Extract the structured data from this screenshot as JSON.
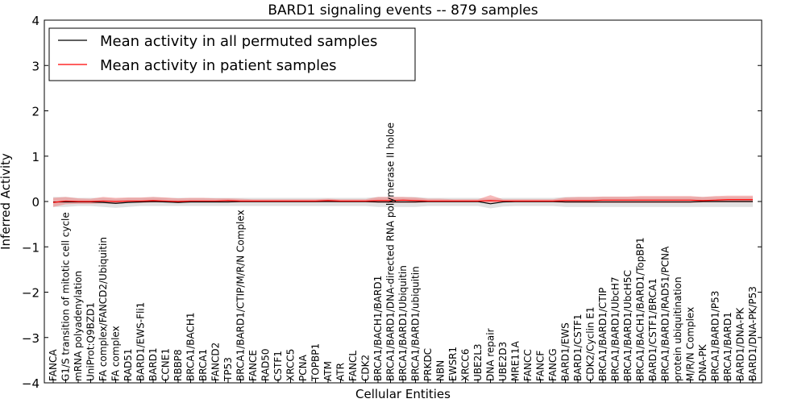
{
  "chart_data": {
    "type": "line",
    "title": "BARD1 signaling events -- 879 samples",
    "xlabel": "Cellular Entities",
    "ylabel": "Inferred Activity",
    "ylim": [
      -4,
      4
    ],
    "yticks": [
      -4,
      -3,
      -2,
      -1,
      0,
      1,
      2,
      3,
      4
    ],
    "legend_position": "top-left",
    "colors": {
      "permuted": "#000000",
      "patient": "#ff0000",
      "permuted_band": "#c8c8c8",
      "patient_band": "#f08080"
    },
    "categories": [
      "FANCA",
      "G1/S transition of mitotic cell cycle",
      "mRNA polyadenylation",
      "UniProt:Q9BZD1",
      "FA complex/FANCD2/Ubiquitin",
      "FA complex",
      "RAD51",
      "BARD1/EWS-Fli1",
      "BARD1",
      "CCNE1",
      "RBBP8",
      "BRCA1/BACH1",
      "BRCA1",
      "FANCD2",
      "TP53",
      "BRCA1/BARD1/CTIP/M/R/N Complex",
      "FANCE",
      "RAD50",
      "CSTF1",
      "XRCC5",
      "PCNA",
      "TOPBP1",
      "ATM",
      "ATR",
      "FANCL",
      "CDK2",
      "BRCA1/BACH1/BARD1",
      "BRCA1/BARD1/DNA-directed RNA polymerase II holoe",
      "BRCA1/BARD1/Ubiquitin",
      "BRCA1/BARD1/ubiquitin",
      "PRKDC",
      "NBN",
      "EWSR1",
      "XRCC6",
      "UBE2L3",
      "DNA repair",
      "UBE2D3",
      "MRE11A",
      "FANCC",
      "FANCF",
      "FANCG",
      "BARD1/EWS",
      "BARD1/CSTF1",
      "CDK2/Cyclin E1",
      "BRCA1/BARD1/CTIP",
      "BRCA1/BARD1/UbcH7",
      "BRCA1/BARD1/UbcH5C",
      "BRCA1/BACH1/BARD1/TopBP1",
      "BARD1/CSTF1/BRCA1",
      "BRCA1/BARD1/RAD51/PCNA",
      "protein ubiquitination",
      "M/R/N Complex",
      "DNA-PK",
      "BRCA1/BARD1/P53",
      "BRCA1/BARD1",
      "BARD1/DNA-PK",
      "BARD1/DNA-PK/P53"
    ],
    "series": [
      {
        "name": "Mean activity in all permuted samples",
        "color": "#000000",
        "values": [
          -0.01,
          -0.01,
          -0.01,
          -0.01,
          -0.02,
          -0.04,
          -0.02,
          -0.01,
          0.0,
          -0.01,
          -0.02,
          -0.01,
          -0.01,
          -0.01,
          -0.01,
          0.0,
          0.0,
          0.0,
          0.0,
          0.0,
          0.0,
          0.0,
          0.0,
          0.0,
          0.0,
          0.0,
          -0.01,
          -0.01,
          -0.01,
          -0.01,
          0.0,
          0.0,
          0.0,
          0.0,
          0.0,
          -0.05,
          -0.01,
          0.0,
          0.0,
          0.0,
          0.0,
          -0.01,
          -0.01,
          -0.01,
          -0.01,
          -0.01,
          -0.01,
          -0.01,
          -0.01,
          -0.01,
          -0.01,
          -0.01,
          0.0,
          0.0,
          0.0,
          0.0,
          0.0
        ],
        "band_lower": [
          -0.12,
          -0.12,
          -0.1,
          -0.1,
          -0.12,
          -0.14,
          -0.12,
          -0.1,
          -0.1,
          -0.1,
          -0.1,
          -0.1,
          -0.1,
          -0.1,
          -0.1,
          -0.1,
          -0.1,
          -0.1,
          -0.1,
          -0.1,
          -0.1,
          -0.1,
          -0.1,
          -0.1,
          -0.1,
          -0.1,
          -0.12,
          -0.12,
          -0.12,
          -0.12,
          -0.1,
          -0.1,
          -0.1,
          -0.1,
          -0.1,
          -0.15,
          -0.11,
          -0.1,
          -0.1,
          -0.1,
          -0.1,
          -0.12,
          -0.12,
          -0.12,
          -0.12,
          -0.12,
          -0.12,
          -0.12,
          -0.12,
          -0.12,
          -0.12,
          -0.12,
          -0.12,
          -0.12,
          -0.12,
          -0.12,
          -0.12
        ],
        "band_upper": [
          0.1,
          0.1,
          0.08,
          0.08,
          0.08,
          0.06,
          0.08,
          0.08,
          0.1,
          0.08,
          0.08,
          0.08,
          0.08,
          0.08,
          0.08,
          0.08,
          0.08,
          0.08,
          0.08,
          0.08,
          0.08,
          0.08,
          0.08,
          0.08,
          0.08,
          0.08,
          0.1,
          0.1,
          0.1,
          0.1,
          0.08,
          0.08,
          0.08,
          0.08,
          0.08,
          0.06,
          0.08,
          0.08,
          0.08,
          0.08,
          0.08,
          0.1,
          0.1,
          0.1,
          0.1,
          0.1,
          0.1,
          0.1,
          0.1,
          0.1,
          0.1,
          0.1,
          0.1,
          0.1,
          0.1,
          0.1,
          0.1
        ]
      },
      {
        "name": "Mean activity in patient samples",
        "color": "#ff0000",
        "values": [
          -0.02,
          0.01,
          0.0,
          0.0,
          0.01,
          0.0,
          0.01,
          0.01,
          0.02,
          0.01,
          0.0,
          0.01,
          0.01,
          0.01,
          0.02,
          0.01,
          0.01,
          0.01,
          0.01,
          0.01,
          0.01,
          0.01,
          0.02,
          0.01,
          0.01,
          0.01,
          0.02,
          0.02,
          0.03,
          0.02,
          0.01,
          0.01,
          0.01,
          0.01,
          0.01,
          0.02,
          0.01,
          0.01,
          0.01,
          0.01,
          0.01,
          0.02,
          0.02,
          0.02,
          0.03,
          0.03,
          0.03,
          0.03,
          0.03,
          0.03,
          0.03,
          0.03,
          0.02,
          0.03,
          0.04,
          0.04,
          0.04
        ],
        "band_lower": [
          -0.12,
          -0.06,
          -0.05,
          -0.05,
          -0.04,
          -0.05,
          -0.03,
          -0.03,
          -0.02,
          -0.02,
          -0.03,
          -0.02,
          -0.02,
          -0.02,
          -0.02,
          -0.02,
          -0.02,
          -0.02,
          -0.02,
          -0.02,
          -0.02,
          -0.02,
          -0.01,
          -0.02,
          -0.02,
          -0.02,
          -0.03,
          -0.03,
          -0.03,
          -0.03,
          -0.02,
          -0.02,
          -0.02,
          -0.02,
          -0.02,
          -0.03,
          -0.02,
          -0.02,
          -0.02,
          -0.02,
          -0.02,
          -0.03,
          -0.03,
          -0.03,
          -0.03,
          -0.03,
          -0.03,
          -0.03,
          -0.03,
          -0.03,
          -0.03,
          -0.03,
          -0.02,
          -0.02,
          -0.02,
          -0.02,
          -0.02
        ],
        "band_upper": [
          0.08,
          0.1,
          0.07,
          0.06,
          0.1,
          0.08,
          0.09,
          0.09,
          0.1,
          0.09,
          0.07,
          0.08,
          0.08,
          0.07,
          0.07,
          0.06,
          0.05,
          0.05,
          0.05,
          0.05,
          0.05,
          0.05,
          0.06,
          0.05,
          0.05,
          0.05,
          0.1,
          0.1,
          0.1,
          0.09,
          0.06,
          0.06,
          0.05,
          0.05,
          0.05,
          0.14,
          0.05,
          0.05,
          0.05,
          0.05,
          0.05,
          0.09,
          0.1,
          0.1,
          0.11,
          0.11,
          0.11,
          0.12,
          0.12,
          0.12,
          0.12,
          0.12,
          0.1,
          0.12,
          0.13,
          0.13,
          0.13
        ]
      }
    ]
  }
}
